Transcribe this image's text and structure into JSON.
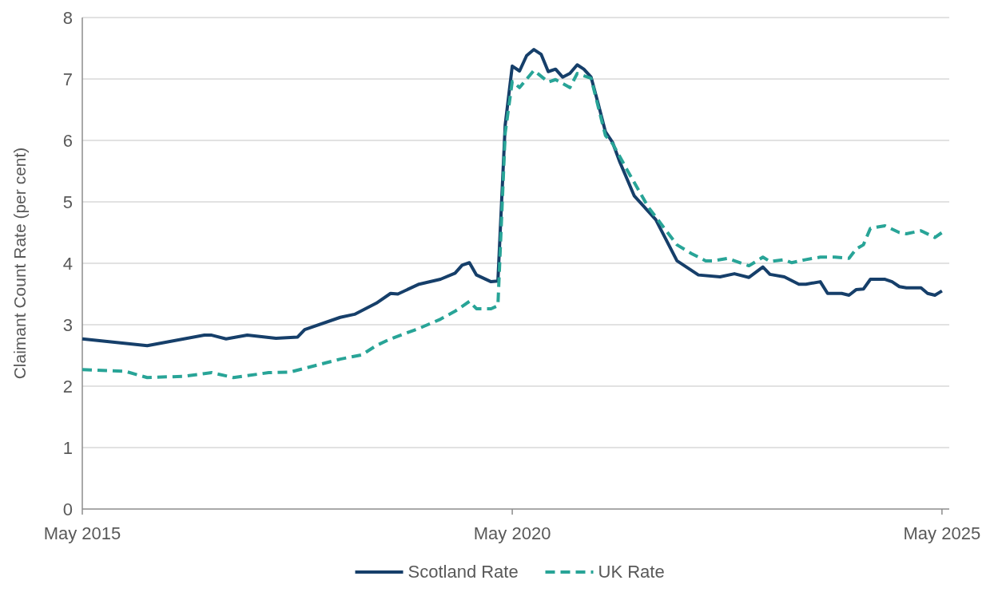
{
  "chart_data": {
    "type": "line",
    "ylabel": "Claimant Count Rate (per cent)",
    "xlim": [
      "2015-05",
      "2025-06"
    ],
    "xticks": [
      {
        "value": "2015-05",
        "label": "May 2015"
      },
      {
        "value": "2020-05",
        "label": "May 2020"
      },
      {
        "value": "2025-05",
        "label": "May 2025"
      }
    ],
    "ylim": [
      0,
      8
    ],
    "yticks": [
      0,
      1,
      2,
      3,
      4,
      5,
      6,
      7,
      8
    ],
    "grid": "y",
    "legend": "bottom",
    "series": [
      {
        "name": "Scotland Rate",
        "color": "#163f6a",
        "line_style": "solid",
        "x": [
          "2015-05",
          "2016-02",
          "2016-10",
          "2016-11",
          "2017-01",
          "2017-04",
          "2017-08",
          "2017-11",
          "2017-12",
          "2018-05",
          "2018-07",
          "2018-10",
          "2018-12",
          "2019-01",
          "2019-04",
          "2019-07",
          "2019-09",
          "2019-10",
          "2019-11",
          "2019-12",
          "2020-02",
          "2020-03",
          "2020-04",
          "2020-05",
          "2020-06",
          "2020-07",
          "2020-08",
          "2020-09",
          "2020-10",
          "2020-11",
          "2020-12",
          "2021-01",
          "2021-02",
          "2021-03",
          "2021-04",
          "2021-05",
          "2021-06",
          "2021-07",
          "2021-08",
          "2021-10",
          "2022-01",
          "2022-04",
          "2022-07",
          "2022-10",
          "2022-12",
          "2023-02",
          "2023-04",
          "2023-05",
          "2023-07",
          "2023-09",
          "2023-10",
          "2023-12",
          "2024-01",
          "2024-03",
          "2024-04",
          "2024-05",
          "2024-06",
          "2024-07",
          "2024-09",
          "2024-10",
          "2024-11",
          "2024-12",
          "2025-02",
          "2025-03",
          "2025-04",
          "2025-05"
        ],
        "values": [
          2.77,
          2.66,
          2.83,
          2.83,
          2.77,
          2.83,
          2.78,
          2.8,
          2.92,
          3.12,
          3.17,
          3.35,
          3.51,
          3.5,
          3.66,
          3.74,
          3.84,
          3.97,
          4.01,
          3.81,
          3.7,
          3.71,
          6.25,
          7.21,
          7.13,
          7.38,
          7.48,
          7.4,
          7.12,
          7.16,
          7.03,
          7.09,
          7.23,
          7.16,
          7.03,
          6.6,
          6.14,
          5.97,
          5.65,
          5.1,
          4.71,
          4.04,
          3.81,
          3.78,
          3.83,
          3.77,
          3.94,
          3.82,
          3.78,
          3.66,
          3.66,
          3.7,
          3.51,
          3.51,
          3.48,
          3.57,
          3.58,
          3.74,
          3.74,
          3.7,
          3.62,
          3.6,
          3.6,
          3.51,
          3.48,
          3.55
        ]
      },
      {
        "name": "UK Rate",
        "color": "#28a497",
        "line_style": "dashed",
        "x": [
          "2015-05",
          "2015-11",
          "2016-02",
          "2016-07",
          "2016-11",
          "2017-02",
          "2017-07",
          "2017-10",
          "2018-03",
          "2018-05",
          "2018-08",
          "2018-10",
          "2018-12",
          "2019-04",
          "2019-07",
          "2019-09",
          "2019-11",
          "2019-12",
          "2020-02",
          "2020-03",
          "2020-04",
          "2020-05",
          "2020-06",
          "2020-08",
          "2020-10",
          "2020-11",
          "2021-01",
          "2021-02",
          "2021-04",
          "2021-06",
          "2021-07",
          "2021-09",
          "2021-12",
          "2022-04",
          "2022-06",
          "2022-08",
          "2022-09",
          "2022-11",
          "2023-02",
          "2023-04",
          "2023-05",
          "2023-07",
          "2023-08",
          "2023-10",
          "2023-12",
          "2024-02",
          "2024-04",
          "2024-05",
          "2024-06",
          "2024-07",
          "2024-09",
          "2024-11",
          "2024-12",
          "2025-02",
          "2025-04",
          "2025-05"
        ],
        "values": [
          2.27,
          2.24,
          2.14,
          2.16,
          2.22,
          2.14,
          2.22,
          2.23,
          2.38,
          2.44,
          2.51,
          2.66,
          2.77,
          2.94,
          3.09,
          3.22,
          3.38,
          3.26,
          3.26,
          3.31,
          6.12,
          6.96,
          6.86,
          7.14,
          6.95,
          6.99,
          6.86,
          7.09,
          7.01,
          6.08,
          5.95,
          5.52,
          4.91,
          4.3,
          4.16,
          4.04,
          4.04,
          4.08,
          3.96,
          4.1,
          4.03,
          4.06,
          4.01,
          4.06,
          4.1,
          4.1,
          4.08,
          4.23,
          4.3,
          4.57,
          4.61,
          4.5,
          4.48,
          4.53,
          4.42,
          4.5
        ]
      }
    ]
  }
}
